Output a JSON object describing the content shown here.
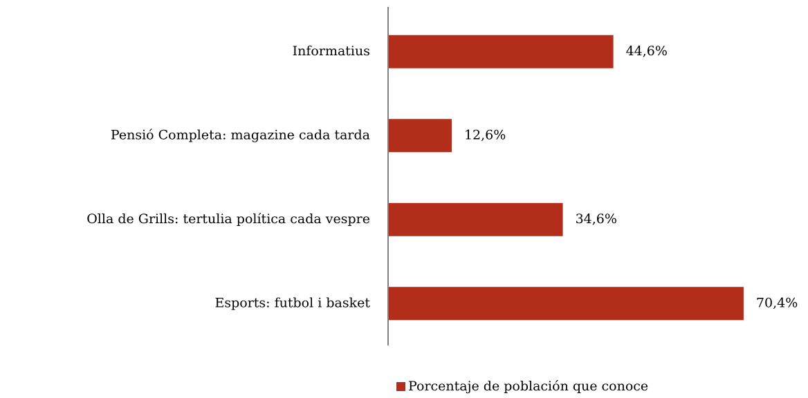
{
  "chart_data": {
    "type": "bar",
    "orientation": "horizontal",
    "categories": [
      "Informatius",
      "Pensió Completa: magazine cada tarda",
      "Olla de Grills: tertulia política cada vespre",
      "Esports: futbol i basket"
    ],
    "series": [
      {
        "name": "Porcentaje de población que conoce",
        "color": "#b22d1a",
        "values": [
          44.6,
          12.6,
          34.6,
          70.4
        ],
        "value_labels": [
          "44,6%",
          "12,6%",
          "34,6%",
          "70,4%"
        ]
      }
    ],
    "xlim": [
      0,
      80
    ],
    "legend": "bottom"
  }
}
